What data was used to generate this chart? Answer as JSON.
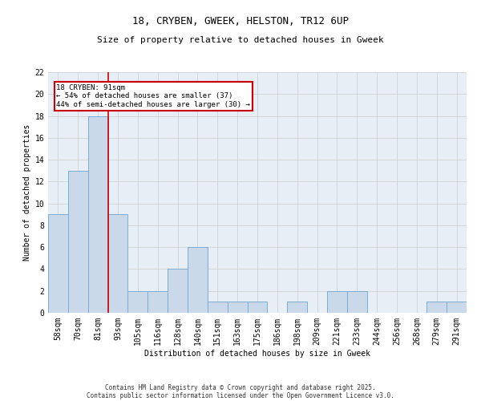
{
  "title": "18, CRYBEN, GWEEK, HELSTON, TR12 6UP",
  "subtitle": "Size of property relative to detached houses in Gweek",
  "xlabel": "Distribution of detached houses by size in Gweek",
  "ylabel": "Number of detached properties",
  "bar_color": "#c9d9ea",
  "bar_edge_color": "#7aadd4",
  "categories": [
    "58sqm",
    "70sqm",
    "81sqm",
    "93sqm",
    "105sqm",
    "116sqm",
    "128sqm",
    "140sqm",
    "151sqm",
    "163sqm",
    "175sqm",
    "186sqm",
    "198sqm",
    "209sqm",
    "221sqm",
    "233sqm",
    "244sqm",
    "256sqm",
    "268sqm",
    "279sqm",
    "291sqm"
  ],
  "values": [
    9,
    13,
    18,
    9,
    2,
    2,
    4,
    6,
    1,
    1,
    1,
    0,
    1,
    0,
    2,
    2,
    0,
    0,
    0,
    1,
    1
  ],
  "ylim": [
    0,
    22
  ],
  "yticks": [
    0,
    2,
    4,
    6,
    8,
    10,
    12,
    14,
    16,
    18,
    20,
    22
  ],
  "red_line_x": 2.5,
  "annotation_line1": "18 CRYBEN: 91sqm",
  "annotation_line2": "← 54% of detached houses are smaller (37)",
  "annotation_line3": "44% of semi-detached houses are larger (30) →",
  "annotation_box_color": "#ffffff",
  "annotation_box_edge_color": "#cc0000",
  "grid_color": "#cccccc",
  "background_color": "#e8eef5",
  "footer_line1": "Contains HM Land Registry data © Crown copyright and database right 2025.",
  "footer_line2": "Contains public sector information licensed under the Open Government Licence v3.0.",
  "red_line_color": "#cc0000",
  "title_fontsize": 9,
  "axis_label_fontsize": 7,
  "tick_fontsize": 7,
  "annotation_fontsize": 6.5,
  "footer_fontsize": 5.5
}
